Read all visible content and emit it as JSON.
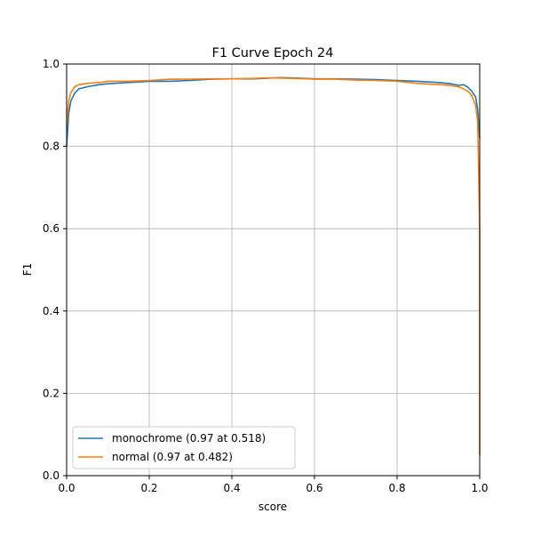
{
  "chart_data": {
    "type": "line",
    "title": "F1 Curve Epoch 24",
    "xlabel": "score",
    "ylabel": "F1",
    "xlim": [
      0,
      1
    ],
    "ylim": [
      0,
      1
    ],
    "grid": true,
    "legend_position": "lower left",
    "xticks": [
      "0.0",
      "0.2",
      "0.4",
      "0.6",
      "0.8",
      "1.0"
    ],
    "yticks": [
      "0.0",
      "0.2",
      "0.4",
      "0.6",
      "0.8",
      "1.0"
    ],
    "series": [
      {
        "name": "monochrome (0.97 at 0.518)",
        "color": "#1f77b4",
        "x": [
          0,
          0.005,
          0.01,
          0.02,
          0.03,
          0.05,
          0.08,
          0.1,
          0.15,
          0.2,
          0.25,
          0.3,
          0.35,
          0.4,
          0.45,
          0.5,
          0.52,
          0.55,
          0.6,
          0.65,
          0.7,
          0.75,
          0.8,
          0.85,
          0.9,
          0.93,
          0.95,
          0.96,
          0.97,
          0.98,
          0.99,
          0.995,
          1.0
        ],
        "y": [
          0.8,
          0.88,
          0.91,
          0.93,
          0.94,
          0.945,
          0.95,
          0.952,
          0.955,
          0.958,
          0.958,
          0.96,
          0.963,
          0.964,
          0.964,
          0.966,
          0.967,
          0.966,
          0.964,
          0.964,
          0.963,
          0.962,
          0.96,
          0.958,
          0.955,
          0.952,
          0.948,
          0.95,
          0.945,
          0.935,
          0.92,
          0.89,
          0.82
        ]
      },
      {
        "name": "normal (0.97 at 0.482)",
        "color": "#ff7f0e",
        "x": [
          0,
          0.005,
          0.01,
          0.02,
          0.03,
          0.05,
          0.08,
          0.1,
          0.15,
          0.2,
          0.25,
          0.3,
          0.35,
          0.4,
          0.45,
          0.48,
          0.5,
          0.55,
          0.6,
          0.65,
          0.7,
          0.75,
          0.8,
          0.85,
          0.9,
          0.93,
          0.95,
          0.96,
          0.97,
          0.98,
          0.99,
          0.995,
          1.0,
          1.0
        ],
        "y": [
          0.85,
          0.91,
          0.93,
          0.945,
          0.95,
          0.953,
          0.955,
          0.958,
          0.958,
          0.96,
          0.963,
          0.963,
          0.964,
          0.964,
          0.965,
          0.966,
          0.966,
          0.965,
          0.963,
          0.963,
          0.961,
          0.96,
          0.958,
          0.953,
          0.95,
          0.948,
          0.944,
          0.94,
          0.935,
          0.925,
          0.9,
          0.86,
          0.6,
          0.05
        ]
      }
    ]
  }
}
